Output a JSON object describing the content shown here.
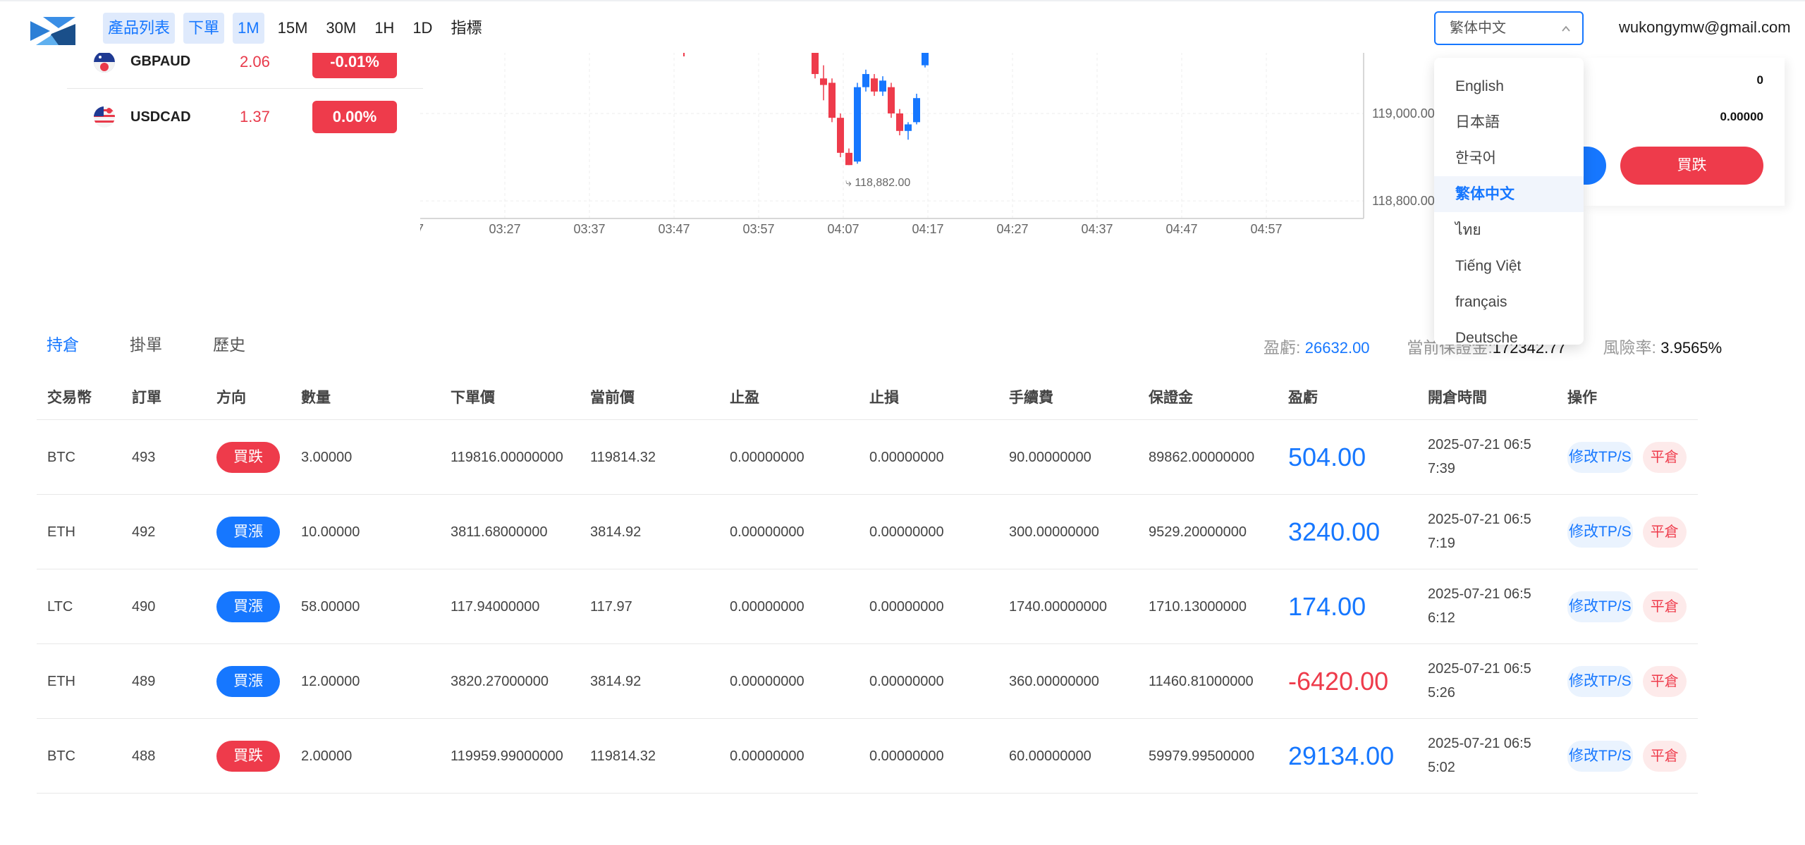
{
  "header": {
    "nav": [
      {
        "label": "產品列表",
        "active": true
      },
      {
        "label": "下單",
        "active": true
      },
      {
        "label": "1M",
        "active": true
      },
      {
        "label": "15M",
        "active": false
      },
      {
        "label": "30M",
        "active": false
      },
      {
        "label": "1H",
        "active": false
      },
      {
        "label": "1D",
        "active": false
      },
      {
        "label": "指標",
        "active": false
      }
    ],
    "language": "繁体中文",
    "user_email": "wukongymw@gmail.com"
  },
  "language_dropdown": {
    "options": [
      "English",
      "日本語",
      "한국어",
      "繁体中文",
      "ไทย",
      "Tiếng Việt",
      "français",
      "Deutsche"
    ],
    "selected": "繁体中文"
  },
  "tickers": [
    {
      "symbol": "GBPAUD",
      "price": "2.06",
      "change": "-0.01%"
    },
    {
      "symbol": "USDCAD",
      "price": "1.37",
      "change": "0.00%"
    }
  ],
  "chart": {
    "x_ticks": [
      "7",
      "03:27",
      "03:37",
      "03:47",
      "03:57",
      "04:07",
      "04:17",
      "04:27",
      "04:37",
      "04:47",
      "04:57"
    ],
    "y_ticks": [
      "119,000.00",
      "118,800.00"
    ],
    "low_label": "118,882.00"
  },
  "chart_data": {
    "type": "candlestick",
    "x": [
      "04:05",
      "04:06",
      "04:07",
      "04:08",
      "04:09",
      "04:10",
      "04:11",
      "04:12",
      "04:13",
      "04:14",
      "04:15",
      "04:16",
      "04:17",
      "04:18"
    ],
    "candles": [
      {
        "o": 119140,
        "c": 119090,
        "h": 119150,
        "l": 119080
      },
      {
        "o": 119080,
        "c": 119065,
        "h": 119110,
        "l": 119030
      },
      {
        "o": 119070,
        "c": 118990,
        "h": 119080,
        "l": 118980
      },
      {
        "o": 118990,
        "c": 118910,
        "h": 119000,
        "l": 118900
      },
      {
        "o": 118910,
        "c": 118882,
        "h": 118920,
        "l": 118882
      },
      {
        "o": 118890,
        "c": 119060,
        "h": 119070,
        "l": 118885
      },
      {
        "o": 119060,
        "c": 119090,
        "h": 119100,
        "l": 119050
      },
      {
        "o": 119080,
        "c": 119050,
        "h": 119090,
        "l": 119040
      },
      {
        "o": 119050,
        "c": 119075,
        "h": 119085,
        "l": 119040
      },
      {
        "o": 119060,
        "c": 119000,
        "h": 119070,
        "l": 118990
      },
      {
        "o": 119000,
        "c": 118960,
        "h": 119010,
        "l": 118950
      },
      {
        "o": 118960,
        "c": 118975,
        "h": 118980,
        "l": 118940
      },
      {
        "o": 118980,
        "c": 119035,
        "h": 119045,
        "l": 118975
      },
      {
        "o": 119110,
        "c": 119140,
        "h": 119145,
        "l": 119105
      }
    ],
    "ylim": [
      118760,
      119140
    ],
    "colors": {
      "up": "#1677ff",
      "down": "#ee3b4b"
    }
  },
  "right_panel": {
    "value1": "0",
    "value2": "0.00000",
    "sell_label": "買跌"
  },
  "tabs": [
    {
      "label": "持倉",
      "active": true
    },
    {
      "label": "掛單",
      "active": false
    },
    {
      "label": "歷史",
      "active": false
    }
  ],
  "stats": {
    "pnl_label": "盈虧:",
    "pnl_value": "26632.00",
    "margin_label_partial": "當前保證金:",
    "margin_value_partial": "172342.77",
    "risk_label": "風險率:",
    "risk_value": "3.9565%"
  },
  "table": {
    "columns": [
      "交易幣",
      "訂單",
      "方向",
      "數量",
      "下單價",
      "當前價",
      "止盈",
      "止損",
      "手續費",
      "保證金",
      "盈虧",
      "開倉時間",
      "操作"
    ],
    "rows": [
      {
        "coin": "BTC",
        "order": "493",
        "direction": "買跌",
        "dir": "down",
        "qty": "3.00000",
        "open_price": "119816.00000000",
        "current_price": "119814.32",
        "tp": "0.00000000",
        "sl": "0.00000000",
        "fee": "90.00000000",
        "margin": "89862.00000000",
        "pnl": "504.00",
        "pnl_sign": "pos",
        "time": "2025-07-21 06:57:39",
        "edit_label": "修改TP/S",
        "close_label": "平倉"
      },
      {
        "coin": "ETH",
        "order": "492",
        "direction": "買漲",
        "dir": "up",
        "qty": "10.00000",
        "open_price": "3811.68000000",
        "current_price": "3814.92",
        "tp": "0.00000000",
        "sl": "0.00000000",
        "fee": "300.00000000",
        "margin": "9529.20000000",
        "pnl": "3240.00",
        "pnl_sign": "pos",
        "time": "2025-07-21 06:57:19",
        "edit_label": "修改TP/S",
        "close_label": "平倉"
      },
      {
        "coin": "LTC",
        "order": "490",
        "direction": "買漲",
        "dir": "up",
        "qty": "58.00000",
        "open_price": "117.94000000",
        "current_price": "117.97",
        "tp": "0.00000000",
        "sl": "0.00000000",
        "fee": "1740.00000000",
        "margin": "1710.13000000",
        "pnl": "174.00",
        "pnl_sign": "pos",
        "time": "2025-07-21 06:56:12",
        "edit_label": "修改TP/S",
        "close_label": "平倉"
      },
      {
        "coin": "ETH",
        "order": "489",
        "direction": "買漲",
        "dir": "up",
        "qty": "12.00000",
        "open_price": "3820.27000000",
        "current_price": "3814.92",
        "tp": "0.00000000",
        "sl": "0.00000000",
        "fee": "360.00000000",
        "margin": "11460.81000000",
        "pnl": "-6420.00",
        "pnl_sign": "neg",
        "time": "2025-07-21 06:55:26",
        "edit_label": "修改TP/S",
        "close_label": "平倉"
      },
      {
        "coin": "BTC",
        "order": "488",
        "direction": "買跌",
        "dir": "down",
        "qty": "2.00000",
        "open_price": "119959.99000000",
        "current_price": "119814.32",
        "tp": "0.00000000",
        "sl": "0.00000000",
        "fee": "60.00000000",
        "margin": "59979.99500000",
        "pnl": "29134.00",
        "pnl_sign": "pos",
        "time": "2025-07-21 06:55:02",
        "edit_label": "修改TP/S",
        "close_label": "平倉"
      }
    ]
  }
}
